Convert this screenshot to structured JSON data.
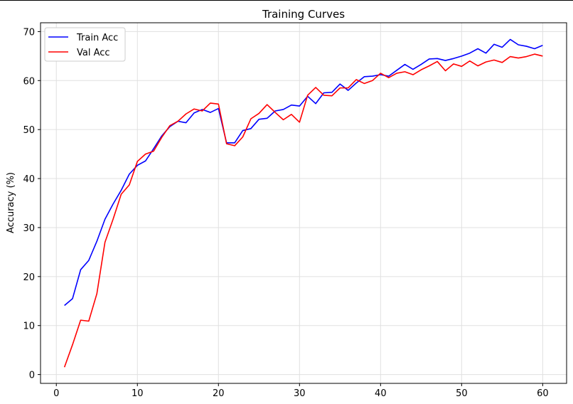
{
  "chart_data": {
    "type": "line",
    "title": "Training Curves",
    "xlabel": "",
    "ylabel": "Accuracy (%)",
    "xlim": [
      -1.95,
      62.95
    ],
    "ylim": [
      -1.8,
      71.8
    ],
    "xticks": [
      0,
      10,
      20,
      30,
      40,
      50,
      60
    ],
    "yticks": [
      0,
      10,
      20,
      30,
      40,
      50,
      60,
      70
    ],
    "grid": true,
    "legend_position": "top-left",
    "x": [
      1,
      2,
      3,
      4,
      5,
      6,
      7,
      8,
      9,
      10,
      11,
      12,
      13,
      14,
      15,
      16,
      17,
      18,
      19,
      20,
      21,
      22,
      23,
      24,
      25,
      26,
      27,
      28,
      29,
      30,
      31,
      32,
      33,
      34,
      35,
      36,
      37,
      38,
      39,
      40,
      41,
      42,
      43,
      44,
      45,
      46,
      47,
      48,
      49,
      50,
      51,
      52,
      53,
      54,
      55,
      56,
      57,
      58,
      59,
      60
    ],
    "series": [
      {
        "name": "Train Acc",
        "color": "#0000ff",
        "values": [
          14.1,
          15.5,
          21.4,
          23.3,
          27.2,
          31.7,
          34.8,
          37.6,
          40.9,
          42.7,
          43.6,
          46.1,
          48.7,
          50.6,
          51.7,
          51.4,
          53.4,
          54.1,
          53.5,
          54.3,
          47.3,
          47.3,
          49.8,
          50.2,
          52.1,
          52.3,
          53.8,
          54.1,
          55.0,
          54.8,
          56.8,
          55.3,
          57.5,
          57.6,
          59.3,
          58.0,
          59.5,
          60.8,
          60.9,
          61.2,
          60.9,
          62.1,
          63.3,
          62.3,
          63.3,
          64.4,
          64.5,
          64.1,
          64.5,
          65.0,
          65.6,
          66.5,
          65.6,
          67.4,
          66.8,
          68.4,
          67.3,
          67.0,
          66.5,
          67.2
        ]
      },
      {
        "name": "Val Acc",
        "color": "#ff0000",
        "values": [
          1.5,
          6.1,
          11.1,
          10.9,
          16.5,
          27.0,
          31.7,
          36.8,
          38.7,
          43.5,
          45.0,
          45.6,
          48.4,
          50.8,
          51.7,
          53.2,
          54.2,
          53.8,
          55.4,
          55.2,
          47.1,
          46.7,
          48.5,
          52.2,
          53.3,
          55.1,
          53.5,
          52.0,
          53.1,
          51.5,
          57.0,
          58.6,
          57.0,
          56.9,
          58.5,
          58.5,
          60.2,
          59.4,
          60.0,
          61.5,
          60.6,
          61.5,
          61.8,
          61.2,
          62.2,
          63.0,
          63.9,
          62.0,
          63.4,
          62.9,
          64.0,
          63.0,
          63.8,
          64.2,
          63.7,
          64.9,
          64.6,
          64.9,
          65.4,
          65.0
        ]
      }
    ]
  }
}
